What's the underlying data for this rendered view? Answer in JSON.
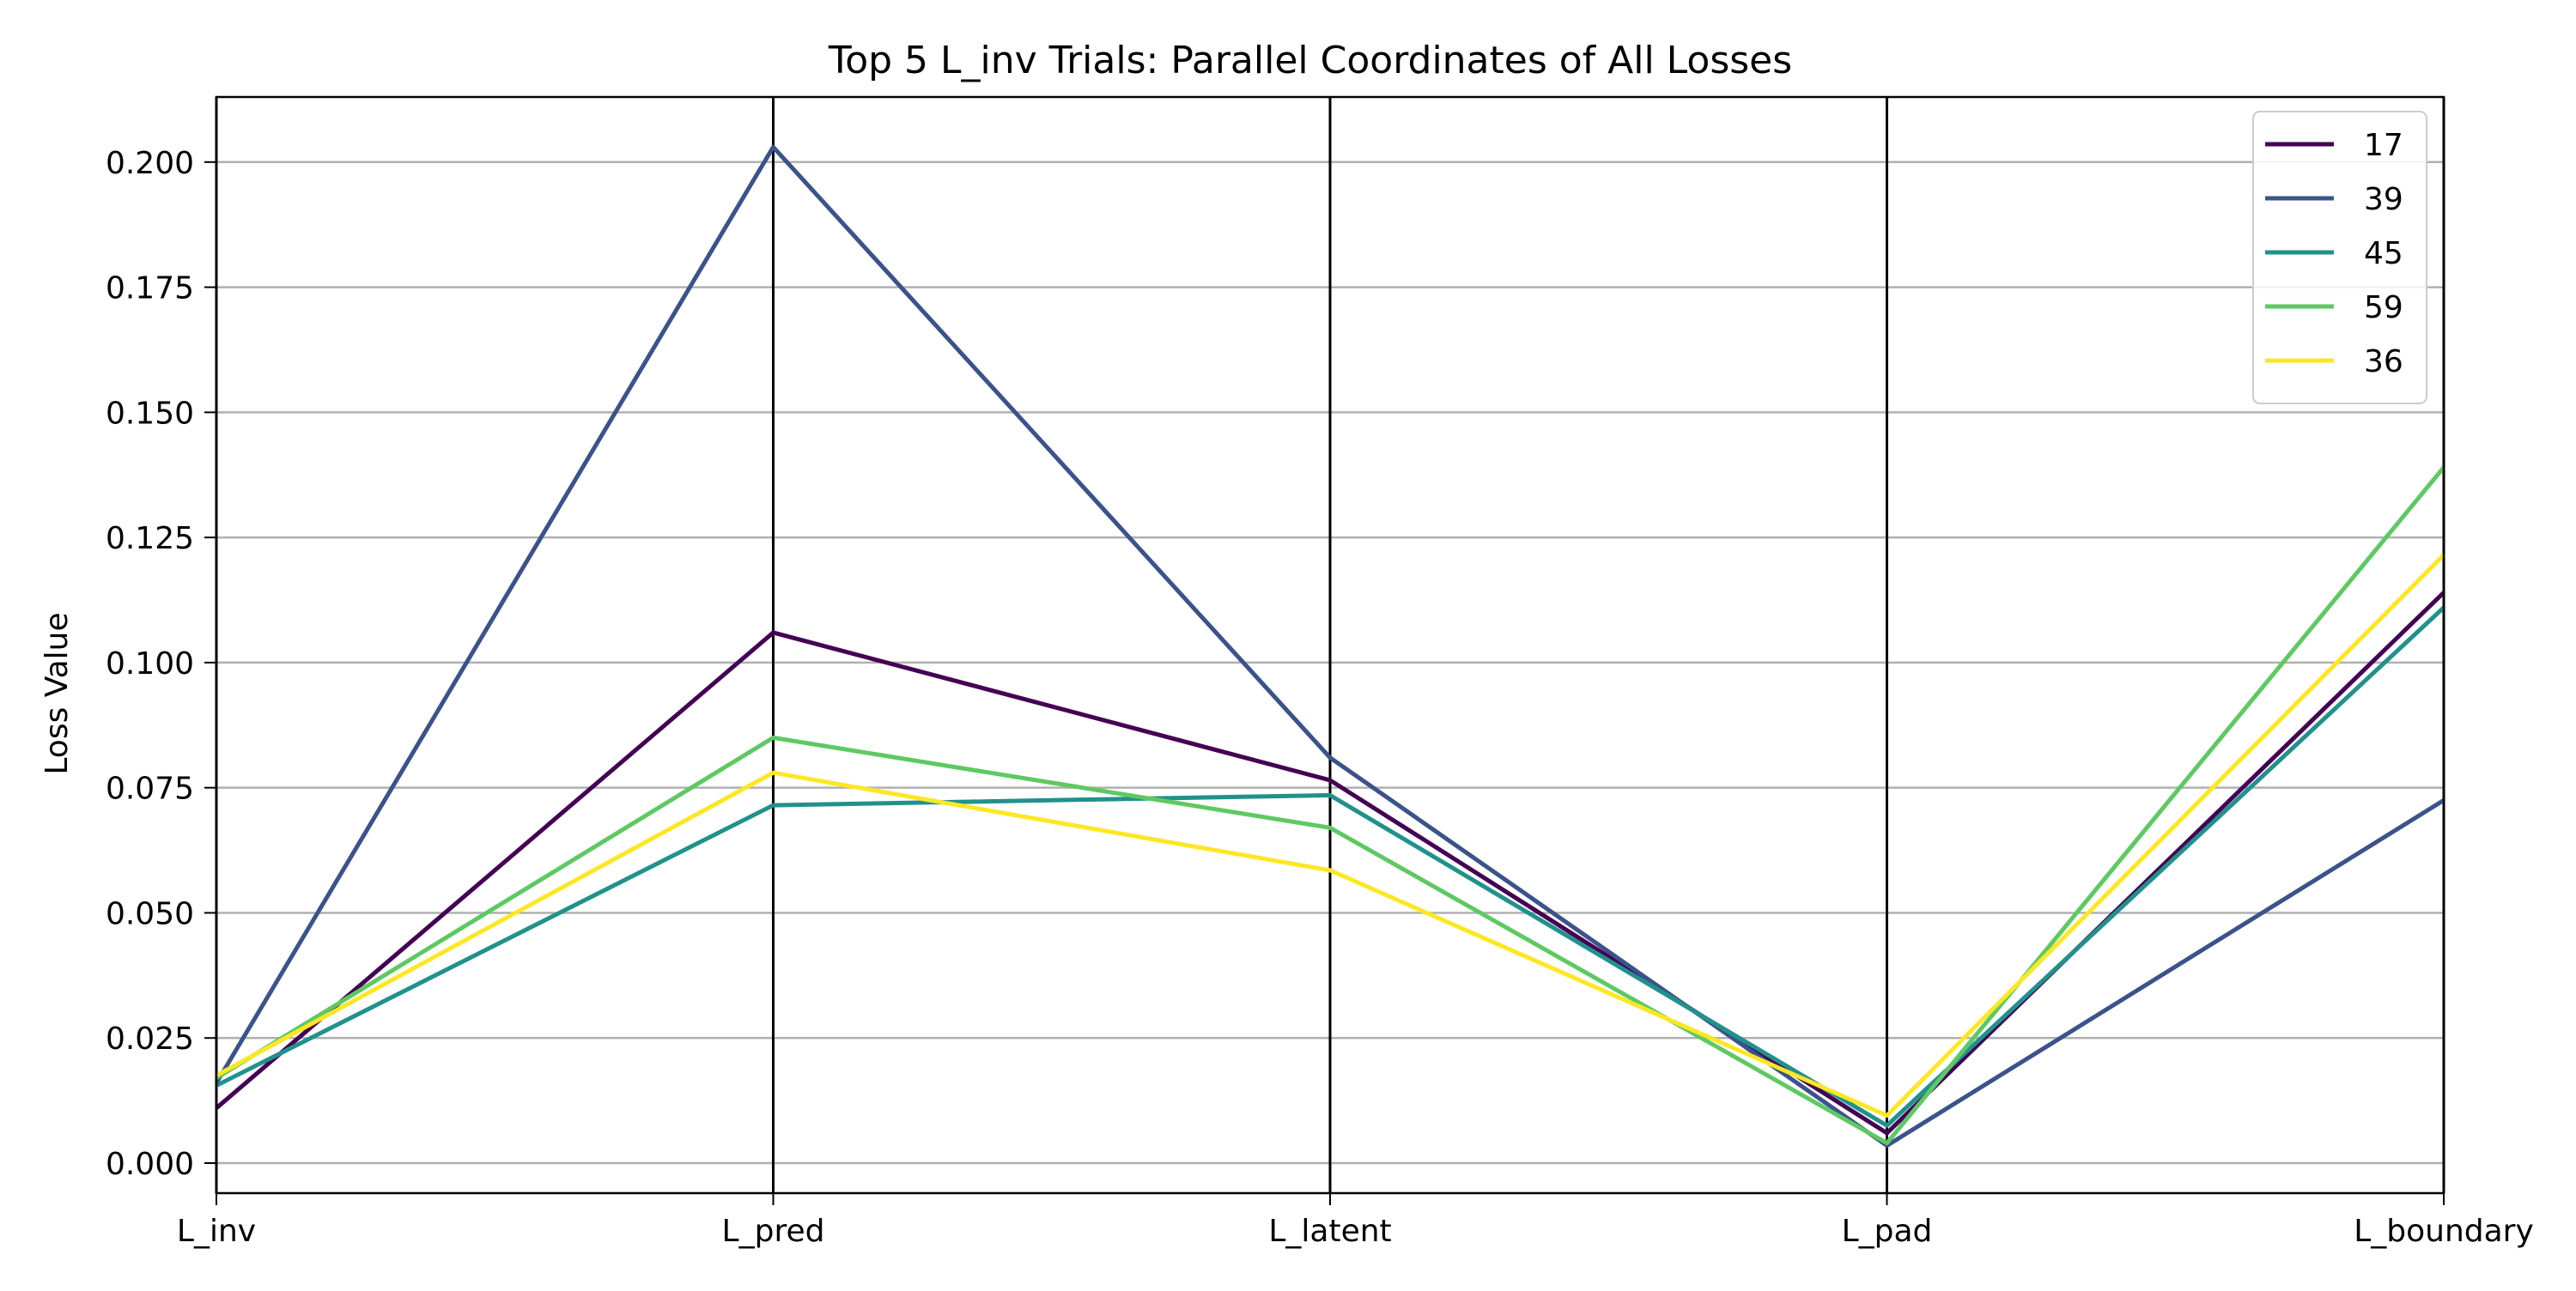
{
  "chart_data": {
    "type": "line",
    "subtype": "parallel-coordinates",
    "title": "Top 5 L_inv Trials: Parallel Coordinates of All Losses",
    "xlabel": "",
    "ylabel": "Loss Value",
    "categories": [
      "L_inv",
      "L_pred",
      "L_latent",
      "L_pad",
      "L_boundary"
    ],
    "ylim": [
      -0.006,
      0.213
    ],
    "yticks": [
      0.0,
      0.025,
      0.05,
      0.075,
      0.1,
      0.125,
      0.15,
      0.175,
      0.2
    ],
    "ytick_labels": [
      "0.000",
      "0.025",
      "0.050",
      "0.075",
      "0.100",
      "0.125",
      "0.150",
      "0.175",
      "0.200"
    ],
    "grid": "horizontal",
    "legend_position": "top-right",
    "series": [
      {
        "name": "17",
        "color": "#440154",
        "values": [
          0.011,
          0.106,
          0.0765,
          0.006,
          0.114
        ]
      },
      {
        "name": "39",
        "color": "#3b528b",
        "values": [
          0.016,
          0.203,
          0.081,
          0.0035,
          0.0725
        ]
      },
      {
        "name": "45",
        "color": "#21918c",
        "values": [
          0.0155,
          0.0715,
          0.0735,
          0.0075,
          0.111
        ]
      },
      {
        "name": "59",
        "color": "#5ec962",
        "values": [
          0.017,
          0.085,
          0.067,
          0.004,
          0.139
        ]
      },
      {
        "name": "36",
        "color": "#fde725",
        "values": [
          0.0175,
          0.078,
          0.0585,
          0.0095,
          0.1215
        ]
      }
    ]
  }
}
